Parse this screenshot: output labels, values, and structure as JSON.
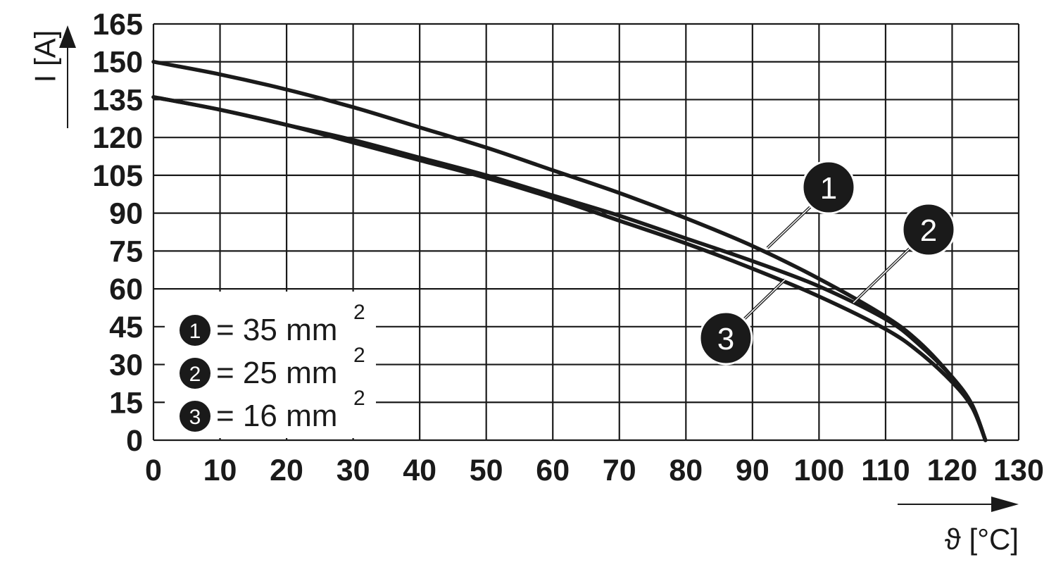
{
  "chart_data": {
    "type": "line",
    "title": "",
    "xlabel": "ϑ [°C]",
    "ylabel": "I [A]",
    "xlim": [
      0,
      130
    ],
    "ylim": [
      0,
      165
    ],
    "xticks": [
      "0",
      "10",
      "20",
      "30",
      "40",
      "50",
      "60",
      "70",
      "80",
      "90",
      "100",
      "110",
      "120",
      "130"
    ],
    "yticks": [
      "0",
      "15",
      "30",
      "45",
      "60",
      "75",
      "90",
      "105",
      "120",
      "135",
      "150",
      "165"
    ],
    "grid": true,
    "legend_position": "bottom-left",
    "series": [
      {
        "name": "1",
        "color": "#1a1a1a",
        "x": [
          0,
          10,
          20,
          30,
          40,
          50,
          60,
          70,
          80,
          90,
          100,
          110,
          115,
          120,
          123,
          125
        ],
        "y": [
          150,
          145,
          139,
          132,
          124,
          116,
          107,
          98,
          88,
          77,
          64,
          49,
          39,
          25,
          14,
          0
        ]
      },
      {
        "name": "2",
        "color": "#1a1a1a",
        "x": [
          0,
          10,
          20,
          30,
          40,
          50,
          60,
          70,
          80,
          90,
          100,
          110,
          115,
          120,
          123,
          125
        ],
        "y": [
          136,
          131,
          125,
          119,
          112,
          105,
          97,
          89,
          80,
          71,
          61,
          48,
          38,
          25,
          14,
          0
        ]
      },
      {
        "name": "3",
        "color": "#1a1a1a",
        "x": [
          0,
          10,
          20,
          30,
          40,
          50,
          60,
          70,
          80,
          90,
          100,
          110,
          115,
          120,
          123,
          125
        ],
        "y": [
          136,
          131,
          125,
          118,
          111,
          104,
          96,
          87,
          78,
          68,
          57,
          44,
          35,
          23,
          13,
          0
        ]
      }
    ],
    "legend": [
      {
        "badge": "1",
        "text": "= 35 mm",
        "sup": "2"
      },
      {
        "badge": "2",
        "text": "= 25 mm",
        "sup": "2"
      },
      {
        "badge": "3",
        "text": "= 16 mm",
        "sup": "2"
      }
    ],
    "callouts": [
      "1",
      "2",
      "3"
    ]
  }
}
